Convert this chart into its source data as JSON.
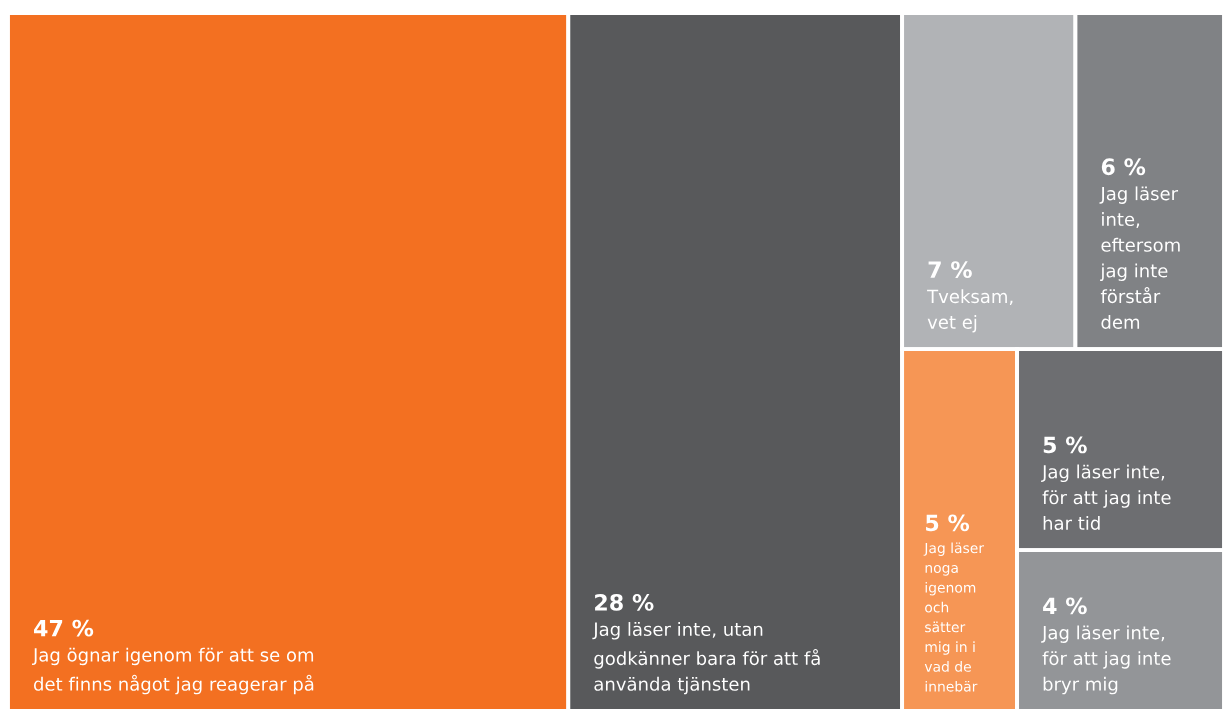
{
  "chart_data": {
    "type": "other",
    "categories": [
      "Jag ögnar igenom för att se om\ndet finns något jag reagerar på",
      "Jag läser inte, utan\ngodkänner bara för att få\nanvända tjänsten",
      "Tveksam,\nvet ej",
      "Jag läser\ninte,\neftersom\njag inte\nförstår\ndem",
      "Jag läser\nnoga\nigenom\noch\nsätter\nmig in i\nvad de\ninnebär",
      "Jag läser inte,\nför att jag inte\nhar tid",
      "Jag läser inte,\nför att jag inte\nbryr mig"
    ],
    "values": [
      47,
      28,
      7,
      6,
      5,
      5,
      4
    ],
    "value_labels": [
      "47 %",
      "28 %",
      "7 %",
      "6 %",
      "5 %",
      "5 %",
      "4 %"
    ],
    "colors": [
      "#f37021",
      "#58595b",
      "#b1b3b6",
      "#808285",
      "#f69655",
      "#6d6e71",
      "#939598"
    ]
  }
}
